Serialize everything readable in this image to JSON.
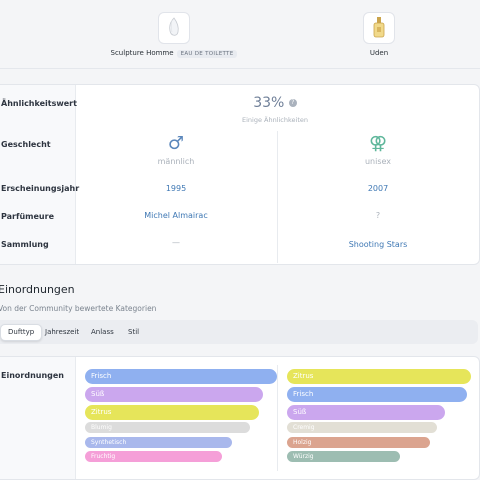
{
  "products": [
    {
      "name": "Sculpture Homme",
      "tag": "EAU DE TOILETTE",
      "icon": "bottle-clear-icon"
    },
    {
      "name": "Uden",
      "tag": "",
      "icon": "bottle-gold-icon"
    }
  ],
  "compare": {
    "labels": {
      "similarity": "Ähnlichkeitswert",
      "gender": "Geschlecht",
      "year": "Erscheinungsjahr",
      "perfumer": "Parfümeure",
      "collection": "Sammlung"
    },
    "similarity_value": "33%",
    "similarity_info_icon": "?",
    "similarity_caption": "Einige Ähnlichkeiten",
    "left": {
      "gender_symbol": "♂",
      "gender": "männlich",
      "year": "1995",
      "perfumer": "Michel Almairac",
      "collection": "—"
    },
    "right": {
      "gender_symbol": "⚢",
      "gender": "unisex",
      "year": "2007",
      "perfumer": "?",
      "collection": "Shooting Stars"
    }
  },
  "rankings": {
    "title": "Einordnungen",
    "subtitle": "Von der Community bewertete Kategorien",
    "tabs": [
      "Dufttyp",
      "Jahreszeit",
      "Anlass",
      "Stil"
    ],
    "active_tab": "Dufttyp",
    "row_label": "Einordnungen",
    "left_bars": [
      {
        "label": "Frisch",
        "share": 0.98,
        "color": "#8fb0f0"
      },
      {
        "label": "Süß",
        "share": 0.91,
        "color": "#cba7ee"
      },
      {
        "label": "Zitrus",
        "share": 0.89,
        "color": "#e6e55a"
      },
      {
        "label": "Blumig",
        "share": 0.84,
        "color": "#dcdcdc"
      },
      {
        "label": "Synthetisch",
        "share": 0.75,
        "color": "#a9b8ec"
      },
      {
        "label": "Fruchtig",
        "share": 0.7,
        "color": "#f59fd8"
      }
    ],
    "right_bars": [
      {
        "label": "Zitrus",
        "share": 0.98,
        "color": "#e6e55a"
      },
      {
        "label": "Frisch",
        "share": 0.96,
        "color": "#8fb0f0"
      },
      {
        "label": "Süß",
        "share": 0.84,
        "color": "#cba7ee"
      },
      {
        "label": "Cremig",
        "share": 0.8,
        "color": "#e2dfd5"
      },
      {
        "label": "Holzig",
        "share": 0.76,
        "color": "#dba48f"
      },
      {
        "label": "Würzig",
        "share": 0.6,
        "color": "#9dbdb2"
      }
    ]
  }
}
